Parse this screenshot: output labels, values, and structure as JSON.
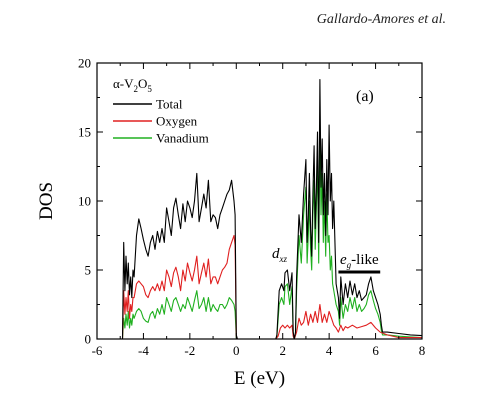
{
  "header": {
    "author": "Gallardo-Amores et al."
  },
  "chart_data": {
    "type": "line",
    "title": "",
    "xlabel": "E (eV)",
    "ylabel": "DOS",
    "xlim": [
      -6,
      8
    ],
    "ylim": [
      0,
      20
    ],
    "xticks": [
      -6,
      -4,
      -2,
      0,
      2,
      4,
      6,
      8
    ],
    "yticks": [
      0,
      5,
      10,
      15,
      20
    ],
    "grid": false,
    "legend_title": {
      "prefix": "α-V",
      "sub1": "2",
      "mid": "O",
      "sub2": "5"
    },
    "legend_position": "top-left",
    "panel_label": "(a)",
    "annotations": {
      "dxz": {
        "base": "d",
        "sub": "xz"
      },
      "eg": {
        "base": "e",
        "sub": "g",
        "suffix": "-like"
      }
    },
    "series": [
      {
        "name": "Total",
        "color": "#000000",
        "x": [
          -6,
          -4.9,
          -4.85,
          -4.8,
          -4.75,
          -4.7,
          -4.65,
          -4.6,
          -4.55,
          -4.5,
          -4.45,
          -4.4,
          -4.3,
          -4.2,
          -4.1,
          -4.0,
          -3.9,
          -3.8,
          -3.7,
          -3.6,
          -3.5,
          -3.4,
          -3.3,
          -3.2,
          -3.1,
          -3.0,
          -2.9,
          -2.8,
          -2.7,
          -2.6,
          -2.5,
          -2.4,
          -2.3,
          -2.2,
          -2.1,
          -2.0,
          -1.9,
          -1.8,
          -1.7,
          -1.6,
          -1.5,
          -1.4,
          -1.3,
          -1.2,
          -1.1,
          -1.0,
          -0.9,
          -0.8,
          -0.7,
          -0.6,
          -0.5,
          -0.4,
          -0.3,
          -0.2,
          -0.1,
          -0.05,
          0.0,
          0.05,
          1.7,
          1.75,
          1.85,
          1.95,
          2.05,
          2.1,
          2.2,
          2.3,
          2.4,
          2.45,
          2.5,
          2.55,
          2.6,
          2.7,
          2.8,
          2.9,
          3.0,
          3.05,
          3.1,
          3.15,
          3.2,
          3.25,
          3.3,
          3.35,
          3.4,
          3.45,
          3.5,
          3.55,
          3.6,
          3.65,
          3.7,
          3.75,
          3.8,
          3.85,
          3.9,
          3.95,
          4.0,
          4.05,
          4.1,
          4.15,
          4.2,
          4.3,
          4.4,
          4.45,
          4.5,
          4.6,
          4.7,
          4.8,
          4.9,
          5.0,
          5.1,
          5.2,
          5.3,
          5.4,
          5.5,
          5.6,
          5.7,
          5.8,
          5.9,
          6.0,
          6.1,
          6.2,
          6.25,
          6.3,
          6.5,
          7.0,
          7.5,
          8.0
        ],
        "y": [
          0,
          0,
          7.0,
          3.5,
          6.0,
          4.0,
          5.5,
          3.2,
          4.5,
          3.0,
          5.0,
          4.5,
          7.5,
          8.7,
          8.0,
          7.2,
          6.5,
          6.0,
          7.0,
          7.5,
          6.5,
          7.8,
          7.0,
          8.0,
          7.0,
          9.5,
          8.5,
          7.5,
          9.5,
          10.2,
          9.0,
          8.0,
          9.8,
          8.5,
          10.0,
          9.5,
          8.8,
          10.0,
          12.0,
          8.5,
          9.5,
          10.5,
          9.5,
          11.5,
          8.5,
          9.0,
          8.8,
          8.0,
          9.0,
          9.5,
          10.0,
          10.5,
          10.8,
          11.5,
          10.0,
          9.0,
          0.3,
          0,
          0,
          0.3,
          3.5,
          4.0,
          3.5,
          4.8,
          5.0,
          3.5,
          4.8,
          0.5,
          0,
          0.5,
          4.5,
          9.0,
          7.0,
          10.5,
          13.0,
          7.0,
          9.0,
          12.0,
          8.0,
          6.0,
          10.5,
          14.0,
          8.0,
          11.0,
          15.0,
          7.0,
          18.8,
          11.0,
          14.5,
          9.0,
          12.0,
          7.5,
          13.0,
          9.0,
          15.5,
          10.0,
          12.0,
          8.0,
          10.0,
          4.0,
          3.0,
          1.5,
          4.5,
          2.5,
          4.0,
          3.0,
          4.2,
          3.2,
          4.0,
          3.0,
          3.5,
          2.8,
          3.0,
          3.2,
          4.0,
          4.5,
          3.5,
          3.0,
          2.5,
          1.8,
          1.0,
          0.5,
          0.5,
          0.4,
          0.3,
          0.25
        ]
      },
      {
        "name": "Oxygen",
        "color": "#e02020",
        "x": [
          -6,
          -4.9,
          -4.85,
          -4.8,
          -4.75,
          -4.7,
          -4.65,
          -4.6,
          -4.55,
          -4.5,
          -4.45,
          -4.4,
          -4.3,
          -4.2,
          -4.1,
          -4.0,
          -3.9,
          -3.8,
          -3.7,
          -3.6,
          -3.5,
          -3.4,
          -3.3,
          -3.2,
          -3.1,
          -3.0,
          -2.9,
          -2.8,
          -2.7,
          -2.6,
          -2.5,
          -2.4,
          -2.3,
          -2.2,
          -2.1,
          -2.0,
          -1.9,
          -1.8,
          -1.7,
          -1.6,
          -1.5,
          -1.4,
          -1.3,
          -1.2,
          -1.1,
          -1.0,
          -0.9,
          -0.8,
          -0.7,
          -0.6,
          -0.5,
          -0.4,
          -0.3,
          -0.2,
          -0.1,
          -0.05,
          0.0,
          0.05,
          1.7,
          1.8,
          1.9,
          2.0,
          2.1,
          2.2,
          2.3,
          2.4,
          2.45,
          2.5,
          2.6,
          2.7,
          2.8,
          2.9,
          3.0,
          3.1,
          3.2,
          3.3,
          3.4,
          3.5,
          3.6,
          3.7,
          3.8,
          3.9,
          4.0,
          4.1,
          4.2,
          4.3,
          4.4,
          4.5,
          4.6,
          4.7,
          4.8,
          5.0,
          5.2,
          5.4,
          5.6,
          5.8,
          6.0,
          6.2,
          6.5,
          7.0,
          8.0
        ],
        "y": [
          0,
          0,
          3.5,
          1.8,
          3.0,
          2.0,
          3.5,
          1.5,
          2.5,
          2.0,
          3.0,
          3.0,
          4.0,
          4.2,
          4.0,
          3.8,
          3.2,
          3.0,
          3.5,
          3.8,
          3.5,
          4.0,
          3.5,
          4.2,
          3.5,
          5.0,
          4.5,
          3.8,
          4.8,
          5.2,
          4.5,
          3.5,
          5.0,
          4.2,
          5.5,
          4.8,
          4.2,
          5.0,
          6.0,
          4.0,
          4.8,
          5.5,
          4.5,
          5.8,
          4.0,
          4.5,
          4.5,
          4.0,
          4.5,
          5.0,
          5.2,
          5.5,
          6.5,
          7.0,
          7.5,
          6.8,
          0.2,
          0,
          0,
          0.2,
          0.8,
          1.0,
          0.8,
          1.0,
          0.8,
          1.0,
          0.2,
          0,
          0.5,
          1.5,
          1.0,
          1.2,
          2.0,
          1.0,
          1.8,
          1.2,
          2.0,
          1.2,
          2.5,
          1.2,
          1.8,
          1.2,
          2.0,
          1.5,
          1.0,
          0.8,
          0.5,
          1.0,
          0.6,
          0.9,
          0.8,
          1.0,
          0.8,
          0.9,
          1.0,
          1.2,
          0.8,
          0.5,
          0.3,
          0.1,
          0.1
        ]
      },
      {
        "name": "Vanadium",
        "color": "#20b020",
        "x": [
          -6,
          -4.9,
          -4.85,
          -4.8,
          -4.75,
          -4.7,
          -4.65,
          -4.6,
          -4.55,
          -4.5,
          -4.45,
          -4.4,
          -4.3,
          -4.2,
          -4.1,
          -4.0,
          -3.9,
          -3.8,
          -3.7,
          -3.6,
          -3.5,
          -3.4,
          -3.3,
          -3.2,
          -3.1,
          -3.0,
          -2.9,
          -2.8,
          -2.7,
          -2.6,
          -2.5,
          -2.4,
          -2.3,
          -2.2,
          -2.1,
          -2.0,
          -1.9,
          -1.8,
          -1.7,
          -1.6,
          -1.5,
          -1.4,
          -1.3,
          -1.2,
          -1.1,
          -1.0,
          -0.9,
          -0.8,
          -0.7,
          -0.6,
          -0.5,
          -0.4,
          -0.3,
          -0.2,
          -0.1,
          -0.05,
          0.0,
          0.05,
          1.7,
          1.75,
          1.85,
          1.95,
          2.05,
          2.1,
          2.2,
          2.3,
          2.4,
          2.45,
          2.5,
          2.55,
          2.6,
          2.7,
          2.8,
          2.9,
          3.0,
          3.05,
          3.1,
          3.15,
          3.2,
          3.25,
          3.3,
          3.35,
          3.4,
          3.45,
          3.5,
          3.55,
          3.6,
          3.65,
          3.7,
          3.75,
          3.8,
          3.85,
          3.9,
          3.95,
          4.0,
          4.05,
          4.1,
          4.15,
          4.2,
          4.3,
          4.4,
          4.45,
          4.5,
          4.6,
          4.7,
          4.8,
          4.9,
          5.0,
          5.1,
          5.2,
          5.3,
          5.4,
          5.5,
          5.6,
          5.7,
          5.8,
          5.9,
          6.0,
          6.1,
          6.2,
          6.25,
          6.3,
          6.5,
          7.0,
          7.5,
          8.0
        ],
        "y": [
          0,
          0,
          1.5,
          0.8,
          1.8,
          1.0,
          2.0,
          0.8,
          1.5,
          1.0,
          1.8,
          1.5,
          2.0,
          2.2,
          2.0,
          1.5,
          1.3,
          1.2,
          1.8,
          2.0,
          1.5,
          2.2,
          1.8,
          2.5,
          1.8,
          3.0,
          2.5,
          2.0,
          2.8,
          3.0,
          2.5,
          2.0,
          2.5,
          2.2,
          3.0,
          2.5,
          2.0,
          2.8,
          3.5,
          2.2,
          2.5,
          3.0,
          2.0,
          3.0,
          2.0,
          2.5,
          2.2,
          2.0,
          2.5,
          2.5,
          2.2,
          2.5,
          3.0,
          2.8,
          2.5,
          2.0,
          0.1,
          0,
          0,
          0.2,
          2.5,
          3.0,
          2.5,
          3.8,
          4.0,
          2.5,
          3.8,
          0.3,
          0,
          0.3,
          3.5,
          7.5,
          5.5,
          9.0,
          11.0,
          5.5,
          7.5,
          10.0,
          6.5,
          5.0,
          9.0,
          11.5,
          6.5,
          9.5,
          13.0,
          5.5,
          15.5,
          9.0,
          12.0,
          7.0,
          10.0,
          6.0,
          10.5,
          7.0,
          7.5,
          5.0,
          6.0,
          4.0,
          3.5,
          2.5,
          2.0,
          1.0,
          3.0,
          1.5,
          2.5,
          2.0,
          3.0,
          2.2,
          3.0,
          2.0,
          2.5,
          2.0,
          2.2,
          2.5,
          3.2,
          3.5,
          2.8,
          2.2,
          1.8,
          1.2,
          0.6,
          0.3,
          0.3,
          0.2,
          0.15,
          0.1
        ]
      }
    ]
  }
}
